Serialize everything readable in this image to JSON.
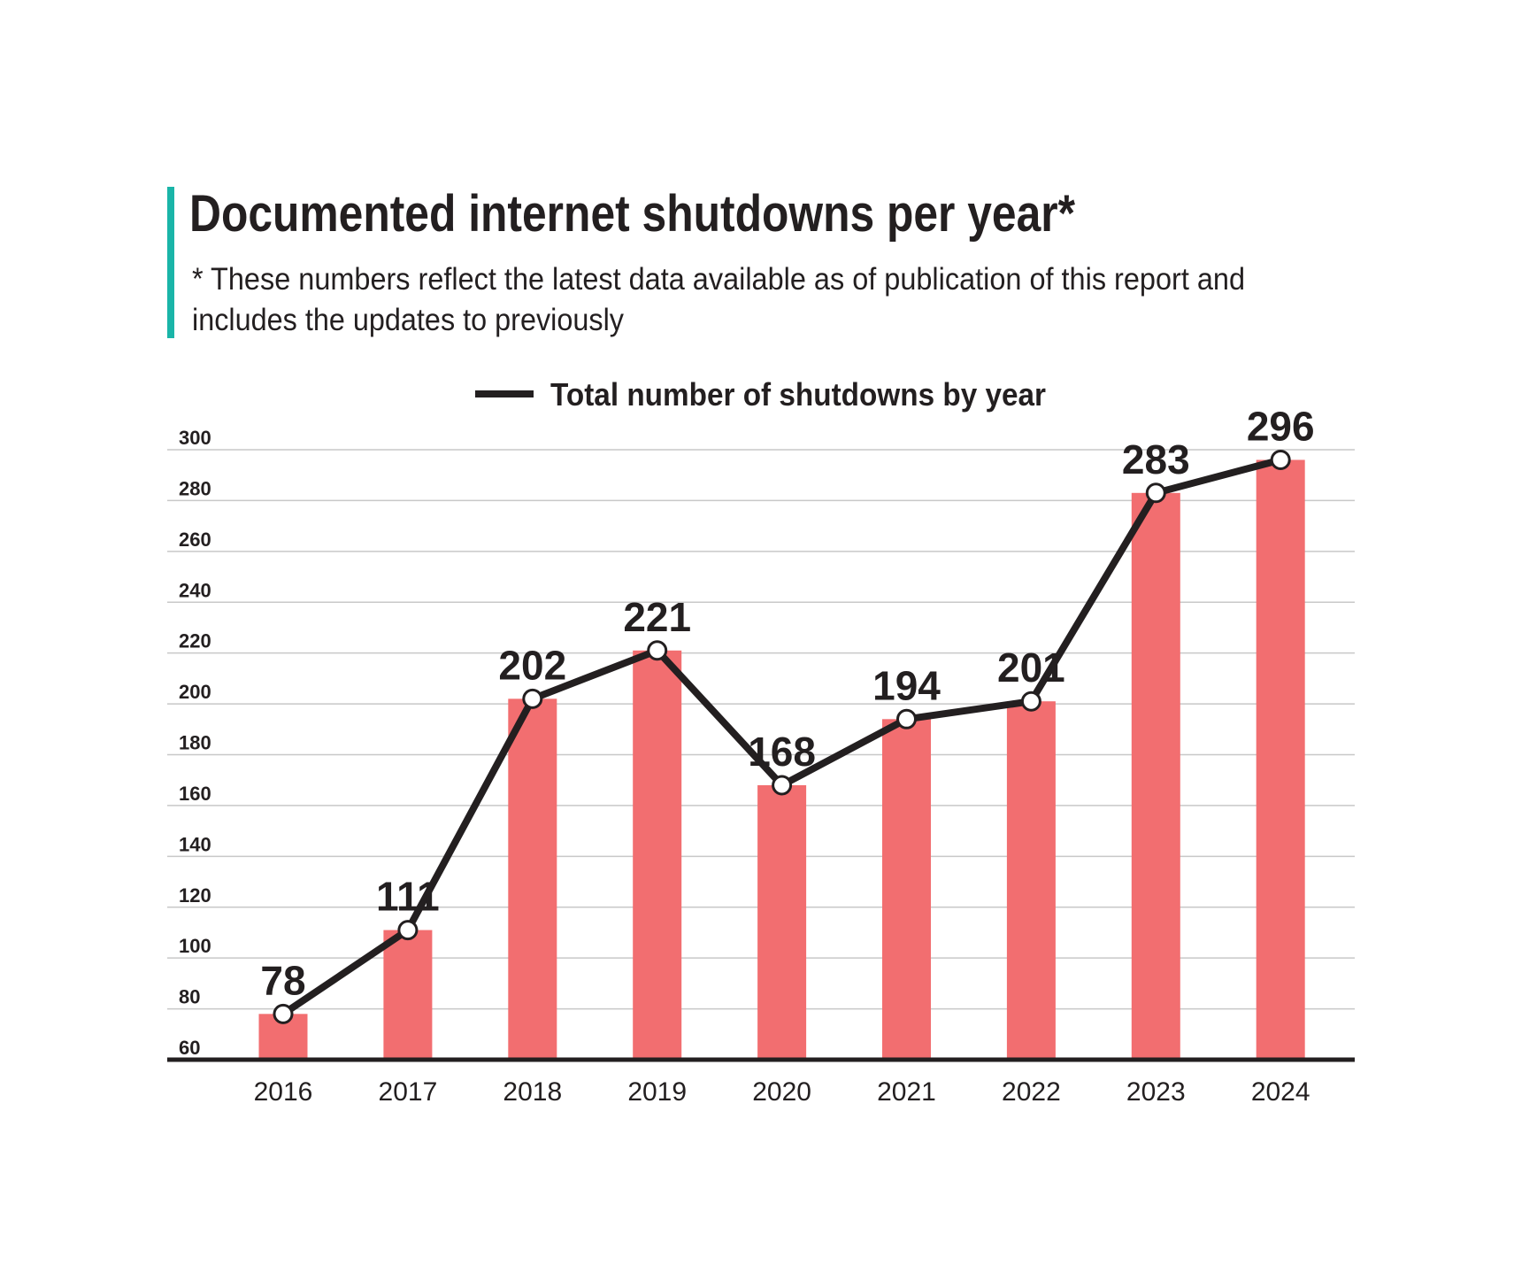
{
  "colors": {
    "accent": "#1ab5a8",
    "bar": "#f26e70",
    "line": "#231f20",
    "grid": "#c8c8c8"
  },
  "chart_data": {
    "type": "bar",
    "title": "Documented internet shutdowns per year*",
    "subtitle_lines": [
      "* These numbers reflect the latest data available as of publication of this report and",
      "includes the updates to previously"
    ],
    "legend": {
      "label": "Total number of shutdowns by year",
      "placement": "top-center"
    },
    "categories": [
      "2016",
      "2017",
      "2018",
      "2019",
      "2020",
      "2021",
      "2022",
      "2023",
      "2024"
    ],
    "series": [
      {
        "name": "Total number of shutdowns by year",
        "type": "bar+line",
        "values": [
          78,
          111,
          202,
          221,
          168,
          194,
          201,
          283,
          296
        ]
      }
    ],
    "ylim": [
      60,
      300
    ],
    "yticks": [
      60,
      80,
      100,
      120,
      140,
      160,
      180,
      200,
      220,
      240,
      260,
      280,
      300
    ],
    "grid": true,
    "xlabel": "",
    "ylabel": ""
  }
}
